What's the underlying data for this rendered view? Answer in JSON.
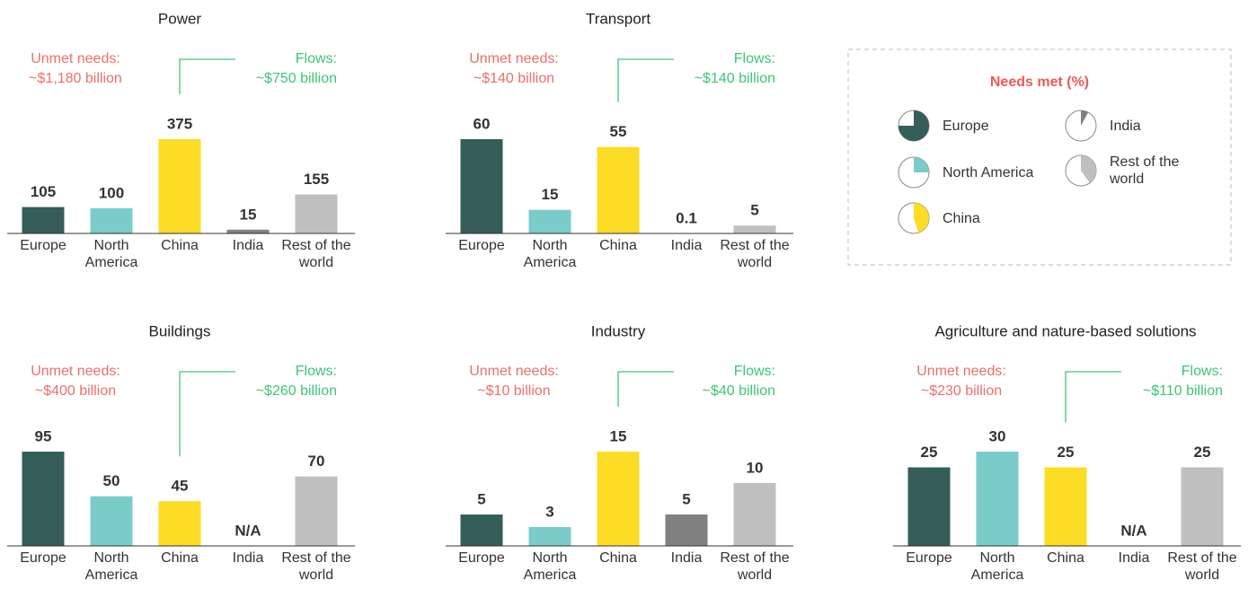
{
  "chart_data": [
    {
      "type": "bar",
      "title": "Power",
      "unmet_label": "Unmet needs:",
      "unmet_value": "~$1,180 billion",
      "flows_label": "Flows:",
      "flows_value": "~$750 billion",
      "categories": [
        "Europe",
        "North America",
        "China",
        "India",
        "Rest of the world"
      ],
      "values": [
        105,
        100,
        375,
        15,
        155
      ],
      "colors": [
        "#355e5b",
        "#79ccc9",
        "#fcdc24",
        "#808080",
        "#bfbfbf"
      ]
    },
    {
      "type": "bar",
      "title": "Transport",
      "unmet_label": "Unmet needs:",
      "unmet_value": "~$140 billion",
      "flows_label": "Flows:",
      "flows_value": "~$140 billion",
      "categories": [
        "Europe",
        "North America",
        "China",
        "India",
        "Rest of the world"
      ],
      "values": [
        60,
        15,
        55,
        0.1,
        5
      ],
      "colors": [
        "#355e5b",
        "#79ccc9",
        "#fcdc24",
        "#808080",
        "#bfbfbf"
      ]
    },
    {
      "type": "bar",
      "title": "Buildings",
      "unmet_label": "Unmet needs:",
      "unmet_value": "~$400 billion",
      "flows_label": "Flows:",
      "flows_value": "~$260 billion",
      "categories": [
        "Europe",
        "North America",
        "China",
        "India",
        "Rest of the world"
      ],
      "values": [
        95,
        50,
        45,
        null,
        70
      ],
      "value_labels": [
        "95",
        "50",
        "45",
        "N/A",
        "70"
      ],
      "colors": [
        "#355e5b",
        "#79ccc9",
        "#fcdc24",
        "#808080",
        "#bfbfbf"
      ]
    },
    {
      "type": "bar",
      "title": "Industry",
      "unmet_label": "Unmet needs:",
      "unmet_value": "~$10 billion",
      "flows_label": "Flows:",
      "flows_value": "~$40 billion",
      "categories": [
        "Europe",
        "North America",
        "China",
        "India",
        "Rest of the world"
      ],
      "values": [
        5,
        3,
        15,
        5,
        10
      ],
      "colors": [
        "#355e5b",
        "#79ccc9",
        "#fcdc24",
        "#808080",
        "#bfbfbf"
      ]
    },
    {
      "type": "bar",
      "title": "Agriculture and nature-based solutions",
      "unmet_label": "Unmet needs:",
      "unmet_value": "~$230 billion",
      "flows_label": "Flows:",
      "flows_value": "~$110 billion",
      "categories": [
        "Europe",
        "North America",
        "China",
        "India",
        "Rest of the world"
      ],
      "values": [
        25,
        30,
        25,
        null,
        25
      ],
      "value_labels": [
        "25",
        "30",
        "25",
        "N/A",
        "25"
      ],
      "colors": [
        "#355e5b",
        "#79ccc9",
        "#fcdc24",
        "#808080",
        "#bfbfbf"
      ]
    }
  ],
  "legend": {
    "title": "Needs met (%)",
    "items": [
      {
        "name": "Europe",
        "value": 75,
        "color": "#355e5b"
      },
      {
        "name": "India",
        "value": 8,
        "color": "#808080"
      },
      {
        "name": "North America",
        "value": 25,
        "color": "#79ccc9"
      },
      {
        "name": "Rest of the world",
        "value": 40,
        "color": "#bfbfbf"
      },
      {
        "name": "China",
        "value": 45,
        "color": "#fcdc24"
      }
    ]
  }
}
